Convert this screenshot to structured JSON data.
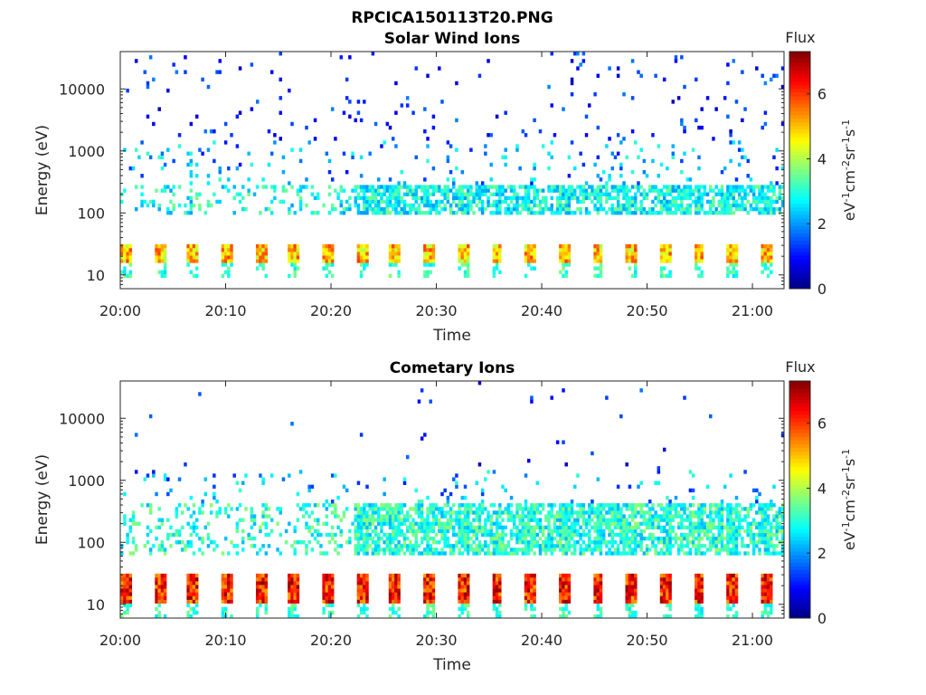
{
  "figure": {
    "title": "RPCICA150113T20.PNG"
  },
  "chart_data": [
    {
      "type": "heatmap",
      "title": "Solar Wind Ions",
      "xlabel": "Time",
      "ylabel": "Energy (eV)",
      "y_scale": "log",
      "ylim": [
        6,
        40000
      ],
      "xlim": [
        "20:00",
        "21:03"
      ],
      "x_ticks": [
        "20:00",
        "20:10",
        "20:20",
        "20:30",
        "20:40",
        "20:50",
        "21:00"
      ],
      "y_ticks": [
        "10",
        "100",
        "1000",
        "10000"
      ],
      "y_tick_values": [
        10,
        100,
        1000,
        10000
      ],
      "colorbar": {
        "title": "Flux",
        "label": "eV-1cm-2sr-1s-1",
        "min": 0,
        "max": 7.3,
        "ticks": [
          "0",
          "2",
          "4",
          "6"
        ],
        "tick_values": [
          0,
          2,
          4,
          6
        ],
        "colormap": "jet"
      },
      "features": {
        "low_energy_band_eV": [
          15,
          30
        ],
        "low_energy_band_level": 5.0,
        "mid_band_eV": [
          100,
          300
        ],
        "mid_band_level": 2.8,
        "sweep_period_min": 3.2
      }
    },
    {
      "type": "heatmap",
      "title": "Cometary Ions",
      "xlabel": "Time",
      "ylabel": "Energy (eV)",
      "y_scale": "log",
      "ylim": [
        6,
        40000
      ],
      "xlim": [
        "20:00",
        "21:03"
      ],
      "x_ticks": [
        "20:00",
        "20:10",
        "20:20",
        "20:30",
        "20:40",
        "20:50",
        "21:00"
      ],
      "y_ticks": [
        "10",
        "100",
        "1000",
        "10000"
      ],
      "y_tick_values": [
        10,
        100,
        1000,
        10000
      ],
      "colorbar": {
        "title": "Flux",
        "label": "eV-1cm-2sr-1s-1",
        "min": 0,
        "max": 7.3,
        "ticks": [
          "0",
          "2",
          "4",
          "6"
        ],
        "tick_values": [
          0,
          2,
          4,
          6
        ],
        "colormap": "jet"
      },
      "features": {
        "low_energy_band_eV": [
          10,
          30
        ],
        "low_energy_band_level": 6.2,
        "mid_band_eV": [
          60,
          400
        ],
        "mid_band_level": 3.0,
        "sweep_period_min": 3.2
      }
    }
  ]
}
